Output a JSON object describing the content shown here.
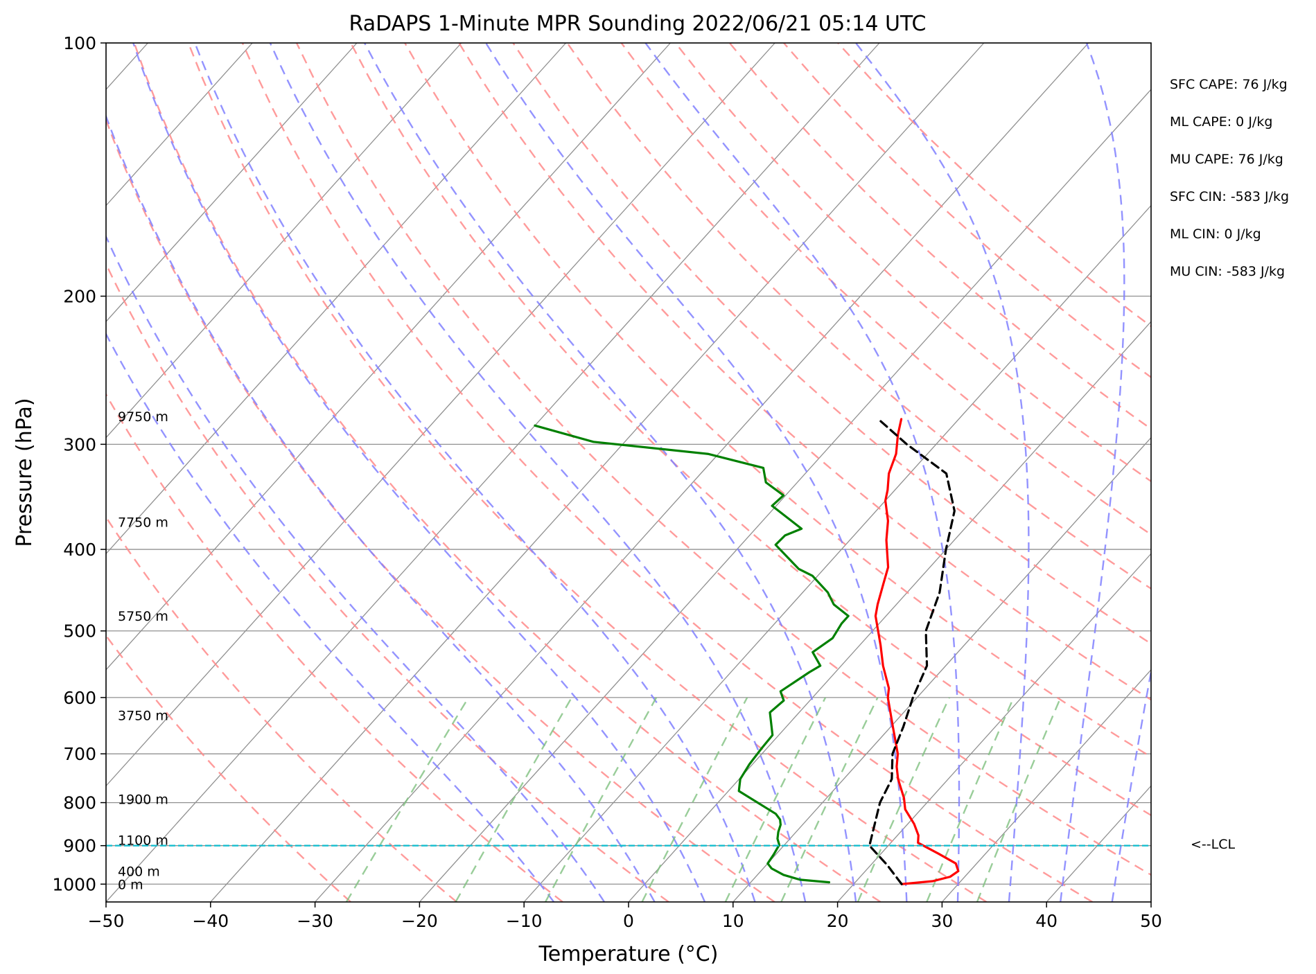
{
  "chart_data": {
    "type": "line",
    "subtype": "skew-T log-P sounding",
    "title": "RaDAPS 1-Minute MPR Sounding 2022/06/21 05:14 UTC",
    "xlabel": "Temperature (°C)",
    "ylabel": "Pressure (hPa)",
    "xlim": [
      -50,
      50
    ],
    "ylim": [
      1050,
      100
    ],
    "y_scale": "log",
    "grid": true,
    "x_ticks": [
      -50,
      -40,
      -30,
      -20,
      -10,
      0,
      10,
      20,
      30,
      40,
      50
    ],
    "x_tick_labels": [
      "−50",
      "−40",
      "−30",
      "−20",
      "−10",
      "0",
      "10",
      "20",
      "30",
      "40",
      "50"
    ],
    "y_ticks": [
      1000,
      900,
      800,
      700,
      600,
      500,
      400,
      300,
      200,
      100
    ],
    "y_tick_labels": [
      "1000",
      "900",
      "800",
      "700",
      "600",
      "500",
      "400",
      "300",
      "200",
      "100"
    ],
    "colors": {
      "temperature": "#ff0000",
      "dewpoint": "#008000",
      "parcel": "#000000",
      "lcl": "#17becf",
      "dry_adiabats": "#ff8a8a",
      "moist_adiabats": "#8080ff",
      "mixing_ratio": "#80c080",
      "isotherms": "#909090"
    },
    "series": [
      {
        "key": "temperature",
        "style": "solid",
        "points": [
          [
            24.6,
            1000
          ],
          [
            27.3,
            992
          ],
          [
            28.6,
            980
          ],
          [
            28.9,
            965
          ],
          [
            28.0,
            945
          ],
          [
            25.5,
            920
          ],
          [
            22.6,
            893
          ],
          [
            22.0,
            875
          ],
          [
            20.6,
            848
          ],
          [
            18.5,
            815
          ],
          [
            17.4,
            790
          ],
          [
            15.2,
            750
          ],
          [
            14.0,
            725
          ],
          [
            13.0,
            700
          ],
          [
            10.2,
            650
          ],
          [
            7.2,
            600
          ],
          [
            6.5,
            585
          ],
          [
            4.0,
            550
          ],
          [
            2.0,
            520
          ],
          [
            -1.0,
            480
          ],
          [
            -1.8,
            465
          ],
          [
            -3.0,
            440
          ],
          [
            -4.0,
            420
          ],
          [
            -6.5,
            390
          ],
          [
            -8.0,
            370
          ],
          [
            -10.0,
            350
          ],
          [
            -10.7,
            340
          ],
          [
            -12.0,
            325
          ],
          [
            -13.0,
            308
          ],
          [
            -14.5,
            292
          ],
          [
            -15.5,
            280
          ]
        ]
      },
      {
        "key": "dewpoint",
        "style": "solid",
        "points": [
          [
            17.5,
            995
          ],
          [
            14.5,
            988
          ],
          [
            12.5,
            975
          ],
          [
            10.8,
            958
          ],
          [
            10.0,
            945
          ],
          [
            9.8,
            922
          ],
          [
            9.5,
            898
          ],
          [
            8.8,
            883
          ],
          [
            8.3,
            867
          ],
          [
            7.9,
            850
          ],
          [
            7.4,
            838
          ],
          [
            6.5,
            825
          ],
          [
            1.0,
            775
          ],
          [
            0.1,
            750
          ],
          [
            -0.3,
            720
          ],
          [
            -0.5,
            690
          ],
          [
            -0.6,
            665
          ],
          [
            -2.8,
            625
          ],
          [
            -2.5,
            605
          ],
          [
            -3.6,
            590
          ],
          [
            -2.5,
            560
          ],
          [
            -2.0,
            550
          ],
          [
            -3.9,
            530
          ],
          [
            -3.2,
            510
          ],
          [
            -3.6,
            490
          ],
          [
            -3.6,
            480
          ],
          [
            -6.0,
            465
          ],
          [
            -7.6,
            450
          ],
          [
            -10.5,
            430
          ],
          [
            -12.4,
            422
          ],
          [
            -16.7,
            395
          ],
          [
            -16.6,
            385
          ],
          [
            -15.6,
            378
          ],
          [
            -20.4,
            355
          ],
          [
            -20.2,
            345
          ],
          [
            -23.0,
            333
          ],
          [
            -24.5,
            320
          ],
          [
            -31.0,
            308
          ],
          [
            -43.0,
            298
          ],
          [
            -50.0,
            285
          ]
        ]
      },
      {
        "key": "parcel",
        "style": "dashed",
        "points": [
          [
            24.6,
            1000
          ],
          [
            21.5,
            948
          ],
          [
            18.2,
            900
          ],
          [
            15.5,
            800
          ],
          [
            14.6,
            750
          ],
          [
            12.5,
            700
          ],
          [
            11.2,
            650
          ],
          [
            9.6,
            600
          ],
          [
            8.2,
            550
          ],
          [
            5.1,
            500
          ],
          [
            3.1,
            450
          ],
          [
            0.0,
            400
          ],
          [
            -2.5,
            360
          ],
          [
            -6.5,
            325
          ],
          [
            -12.8,
            300
          ],
          [
            -17.7,
            280
          ]
        ]
      }
    ],
    "lcl_pressure": 900,
    "lcl_label": "<--LCL",
    "height_labels": [
      {
        "text": "9750 m",
        "p": 278
      },
      {
        "text": "7750 m",
        "p": 371
      },
      {
        "text": "5750 m",
        "p": 480
      },
      {
        "text": "3750 m",
        "p": 630
      },
      {
        "text": "1900 m",
        "p": 792
      },
      {
        "text": "1100 m",
        "p": 886
      },
      {
        "text": "400 m",
        "p": 965
      },
      {
        "text": "0 m",
        "p": 1000
      }
    ],
    "dry_adiabats_theta_C": [
      -30,
      -20,
      -10,
      0,
      10,
      20,
      30,
      40,
      50,
      60,
      70,
      80,
      90,
      100,
      110,
      120,
      130,
      140,
      150
    ],
    "moist_adiabats_T1000_C": [
      -10,
      -5,
      0,
      5,
      10,
      15,
      20,
      25,
      30,
      35,
      40,
      45
    ],
    "mixing_ratio_g_kg": [
      0.4,
      1,
      2,
      4,
      7,
      10,
      16,
      24,
      32
    ],
    "annotations": [
      "SFC CAPE: 76 J/kg",
      "ML CAPE: 0 J/kg",
      "MU CAPE: 76 J/kg",
      "SFC CIN: -583 J/kg",
      "ML CIN: 0 J/kg",
      "MU CIN: -583 J/kg"
    ]
  }
}
